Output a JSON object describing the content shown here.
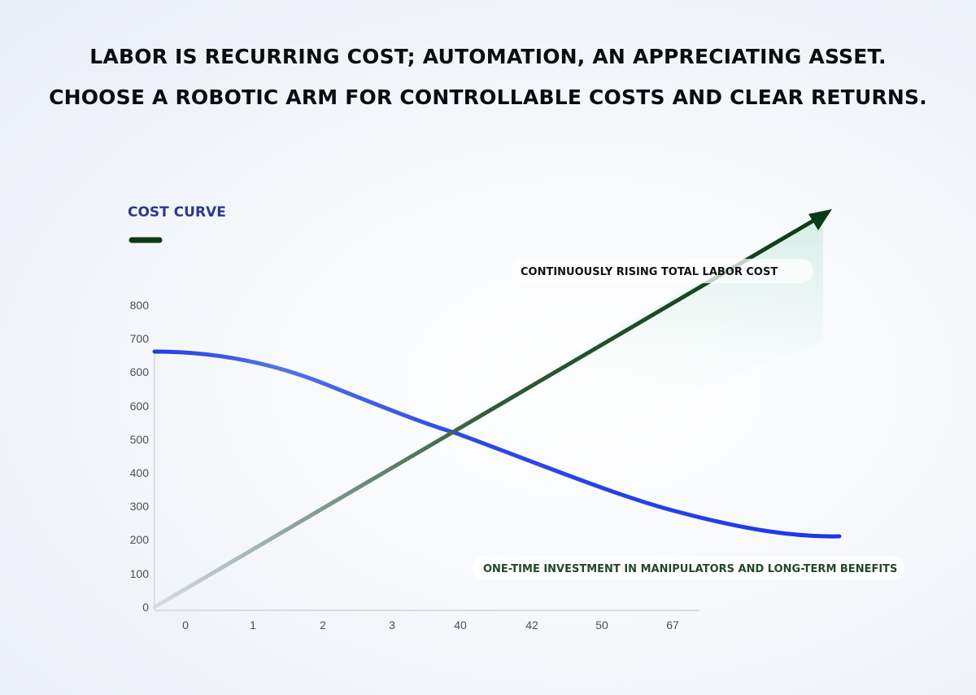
{
  "headline": {
    "line1": "LABOR IS RECURRING COST; AUTOMATION, AN APPRECIATING ASSET.",
    "line2": "CHOOSE A ROBOTIC ARM FOR CONTROLLABLE COSTS AND CLEAR RETURNS."
  },
  "colors": {
    "labor_cost_line": "#0b3a16",
    "investment_curve": "#1f3ee0",
    "legend_title": "#2a3a8c"
  },
  "chart_data": {
    "type": "line",
    "legend": {
      "title": "COST CURVE",
      "swatch_color": "#0b3a16"
    },
    "x_ticks": [
      "0",
      "1",
      "2",
      "3",
      "40",
      "42",
      "50",
      "67"
    ],
    "y_ticks": [
      "0",
      "100",
      "200",
      "300",
      "400",
      "500",
      "600",
      "600",
      "700",
      "800"
    ],
    "ylim": [
      0,
      800
    ],
    "grid": false,
    "series": [
      {
        "label": "CONTINUOUSLY RISING TOTAL LABOR COST",
        "color": "#0b3a16",
        "style": "straight line with arrowhead",
        "points": [
          {
            "x": "0",
            "y": 0
          },
          {
            "x": "40",
            "y": 530
          },
          {
            "x": "67",
            "y": 1150
          }
        ]
      },
      {
        "label": "ONE-TIME INVESTMENT IN MANIPULATORS AND LONG-TERM BENEFITS",
        "color": "#1f3ee0",
        "style": "smooth curve",
        "points": [
          {
            "x": "0",
            "y": 665
          },
          {
            "x": "1",
            "y": 640
          },
          {
            "x": "2",
            "y": 600
          },
          {
            "x": "3",
            "y": 560
          },
          {
            "x": "40",
            "y": 520
          },
          {
            "x": "42",
            "y": 440
          },
          {
            "x": "50",
            "y": 375
          },
          {
            "x": "67",
            "y": 255
          },
          {
            "x": "67",
            "y": 210
          }
        ]
      }
    ]
  }
}
